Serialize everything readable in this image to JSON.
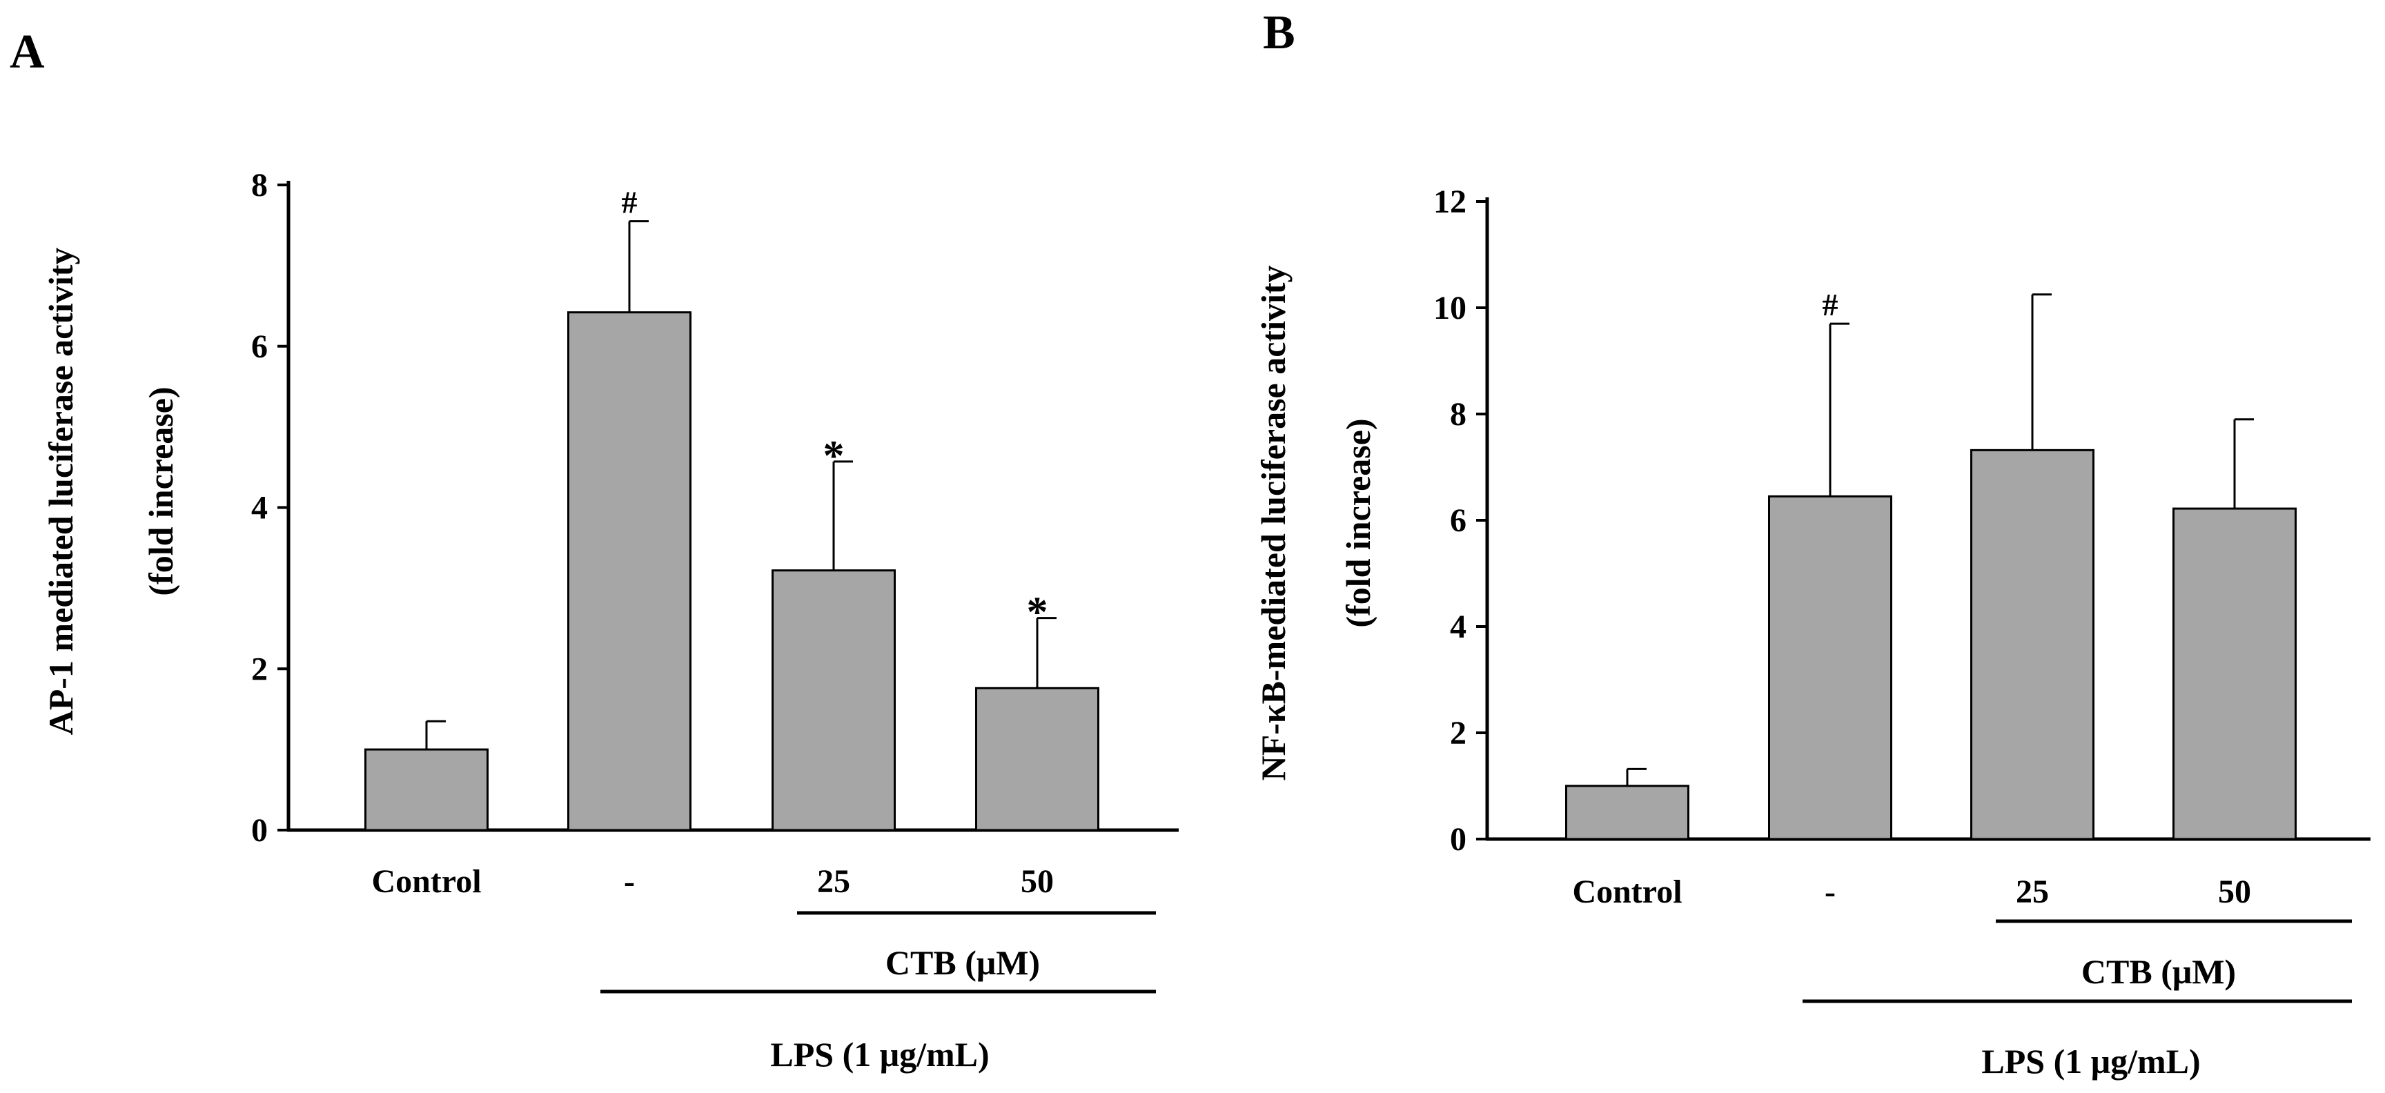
{
  "chart_data": [
    {
      "type": "bar",
      "panel": "A",
      "categories": [
        "Control",
        "-",
        "25",
        "50"
      ],
      "values": [
        1.0,
        6.42,
        3.22,
        1.76
      ],
      "errors": [
        0.35,
        1.13,
        1.35,
        0.87
      ],
      "significance": [
        "",
        "#",
        "*",
        "*"
      ],
      "ylabel_line1": "AP-1 mediated luciferase activity",
      "ylabel_line2": "(fold increase)",
      "ylim": [
        0,
        8
      ],
      "yticks": [
        0,
        2,
        4,
        6,
        8
      ],
      "ytick_labels": [
        "0",
        "2",
        "4",
        "6",
        "8"
      ],
      "groups": {
        "ctb": "CTB (μM)",
        "lps": "LPS (1 μg/mL)"
      },
      "bar_color": "#a6a6a6"
    },
    {
      "type": "bar",
      "panel": "B",
      "categories": [
        "Control",
        "-",
        "25",
        "50"
      ],
      "values": [
        1.0,
        6.45,
        7.32,
        6.22
      ],
      "errors": [
        0.32,
        3.25,
        2.93,
        1.68
      ],
      "significance": [
        "",
        "#",
        "",
        ""
      ],
      "ylabel_line1": "NF-κB-mediated luciferase activity",
      "ylabel_line2": "(fold increase)",
      "ylim": [
        0,
        12
      ],
      "yticks": [
        0,
        2,
        4,
        6,
        8,
        10,
        12
      ],
      "ytick_labels": [
        "0",
        "2",
        "4",
        "6",
        "8",
        "10",
        "12"
      ],
      "groups": {
        "ctb": "CTB (μM)",
        "lps": "LPS (1 μg/mL)"
      },
      "bar_color": "#a6a6a6"
    }
  ]
}
